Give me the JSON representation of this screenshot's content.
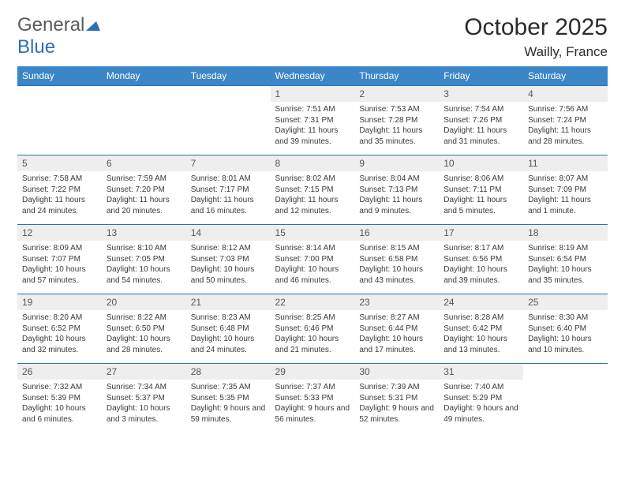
{
  "brand": {
    "part1": "General",
    "part2": "Blue"
  },
  "header": {
    "title": "October 2025",
    "location": "Wailly, France"
  },
  "theme": {
    "accent": "#3b86c6",
    "border": "#2d6fb7",
    "daynum_bg": "#eeeeee",
    "text": "#2b2b2b",
    "logo_gray": "#5a5a5a",
    "logo_blue": "#2d6fb7"
  },
  "weekdays": [
    "Sunday",
    "Monday",
    "Tuesday",
    "Wednesday",
    "Thursday",
    "Friday",
    "Saturday"
  ],
  "weeks": [
    [
      {
        "n": "",
        "sr": "",
        "ss": "",
        "dl": ""
      },
      {
        "n": "",
        "sr": "",
        "ss": "",
        "dl": ""
      },
      {
        "n": "",
        "sr": "",
        "ss": "",
        "dl": ""
      },
      {
        "n": "1",
        "sr": "Sunrise: 7:51 AM",
        "ss": "Sunset: 7:31 PM",
        "dl": "Daylight: 11 hours and 39 minutes."
      },
      {
        "n": "2",
        "sr": "Sunrise: 7:53 AM",
        "ss": "Sunset: 7:28 PM",
        "dl": "Daylight: 11 hours and 35 minutes."
      },
      {
        "n": "3",
        "sr": "Sunrise: 7:54 AM",
        "ss": "Sunset: 7:26 PM",
        "dl": "Daylight: 11 hours and 31 minutes."
      },
      {
        "n": "4",
        "sr": "Sunrise: 7:56 AM",
        "ss": "Sunset: 7:24 PM",
        "dl": "Daylight: 11 hours and 28 minutes."
      }
    ],
    [
      {
        "n": "5",
        "sr": "Sunrise: 7:58 AM",
        "ss": "Sunset: 7:22 PM",
        "dl": "Daylight: 11 hours and 24 minutes."
      },
      {
        "n": "6",
        "sr": "Sunrise: 7:59 AM",
        "ss": "Sunset: 7:20 PM",
        "dl": "Daylight: 11 hours and 20 minutes."
      },
      {
        "n": "7",
        "sr": "Sunrise: 8:01 AM",
        "ss": "Sunset: 7:17 PM",
        "dl": "Daylight: 11 hours and 16 minutes."
      },
      {
        "n": "8",
        "sr": "Sunrise: 8:02 AM",
        "ss": "Sunset: 7:15 PM",
        "dl": "Daylight: 11 hours and 12 minutes."
      },
      {
        "n": "9",
        "sr": "Sunrise: 8:04 AM",
        "ss": "Sunset: 7:13 PM",
        "dl": "Daylight: 11 hours and 9 minutes."
      },
      {
        "n": "10",
        "sr": "Sunrise: 8:06 AM",
        "ss": "Sunset: 7:11 PM",
        "dl": "Daylight: 11 hours and 5 minutes."
      },
      {
        "n": "11",
        "sr": "Sunrise: 8:07 AM",
        "ss": "Sunset: 7:09 PM",
        "dl": "Daylight: 11 hours and 1 minute."
      }
    ],
    [
      {
        "n": "12",
        "sr": "Sunrise: 8:09 AM",
        "ss": "Sunset: 7:07 PM",
        "dl": "Daylight: 10 hours and 57 minutes."
      },
      {
        "n": "13",
        "sr": "Sunrise: 8:10 AM",
        "ss": "Sunset: 7:05 PM",
        "dl": "Daylight: 10 hours and 54 minutes."
      },
      {
        "n": "14",
        "sr": "Sunrise: 8:12 AM",
        "ss": "Sunset: 7:03 PM",
        "dl": "Daylight: 10 hours and 50 minutes."
      },
      {
        "n": "15",
        "sr": "Sunrise: 8:14 AM",
        "ss": "Sunset: 7:00 PM",
        "dl": "Daylight: 10 hours and 46 minutes."
      },
      {
        "n": "16",
        "sr": "Sunrise: 8:15 AM",
        "ss": "Sunset: 6:58 PM",
        "dl": "Daylight: 10 hours and 43 minutes."
      },
      {
        "n": "17",
        "sr": "Sunrise: 8:17 AM",
        "ss": "Sunset: 6:56 PM",
        "dl": "Daylight: 10 hours and 39 minutes."
      },
      {
        "n": "18",
        "sr": "Sunrise: 8:19 AM",
        "ss": "Sunset: 6:54 PM",
        "dl": "Daylight: 10 hours and 35 minutes."
      }
    ],
    [
      {
        "n": "19",
        "sr": "Sunrise: 8:20 AM",
        "ss": "Sunset: 6:52 PM",
        "dl": "Daylight: 10 hours and 32 minutes."
      },
      {
        "n": "20",
        "sr": "Sunrise: 8:22 AM",
        "ss": "Sunset: 6:50 PM",
        "dl": "Daylight: 10 hours and 28 minutes."
      },
      {
        "n": "21",
        "sr": "Sunrise: 8:23 AM",
        "ss": "Sunset: 6:48 PM",
        "dl": "Daylight: 10 hours and 24 minutes."
      },
      {
        "n": "22",
        "sr": "Sunrise: 8:25 AM",
        "ss": "Sunset: 6:46 PM",
        "dl": "Daylight: 10 hours and 21 minutes."
      },
      {
        "n": "23",
        "sr": "Sunrise: 8:27 AM",
        "ss": "Sunset: 6:44 PM",
        "dl": "Daylight: 10 hours and 17 minutes."
      },
      {
        "n": "24",
        "sr": "Sunrise: 8:28 AM",
        "ss": "Sunset: 6:42 PM",
        "dl": "Daylight: 10 hours and 13 minutes."
      },
      {
        "n": "25",
        "sr": "Sunrise: 8:30 AM",
        "ss": "Sunset: 6:40 PM",
        "dl": "Daylight: 10 hours and 10 minutes."
      }
    ],
    [
      {
        "n": "26",
        "sr": "Sunrise: 7:32 AM",
        "ss": "Sunset: 5:39 PM",
        "dl": "Daylight: 10 hours and 6 minutes."
      },
      {
        "n": "27",
        "sr": "Sunrise: 7:34 AM",
        "ss": "Sunset: 5:37 PM",
        "dl": "Daylight: 10 hours and 3 minutes."
      },
      {
        "n": "28",
        "sr": "Sunrise: 7:35 AM",
        "ss": "Sunset: 5:35 PM",
        "dl": "Daylight: 9 hours and 59 minutes."
      },
      {
        "n": "29",
        "sr": "Sunrise: 7:37 AM",
        "ss": "Sunset: 5:33 PM",
        "dl": "Daylight: 9 hours and 56 minutes."
      },
      {
        "n": "30",
        "sr": "Sunrise: 7:39 AM",
        "ss": "Sunset: 5:31 PM",
        "dl": "Daylight: 9 hours and 52 minutes."
      },
      {
        "n": "31",
        "sr": "Sunrise: 7:40 AM",
        "ss": "Sunset: 5:29 PM",
        "dl": "Daylight: 9 hours and 49 minutes."
      },
      {
        "n": "",
        "sr": "",
        "ss": "",
        "dl": ""
      }
    ]
  ]
}
